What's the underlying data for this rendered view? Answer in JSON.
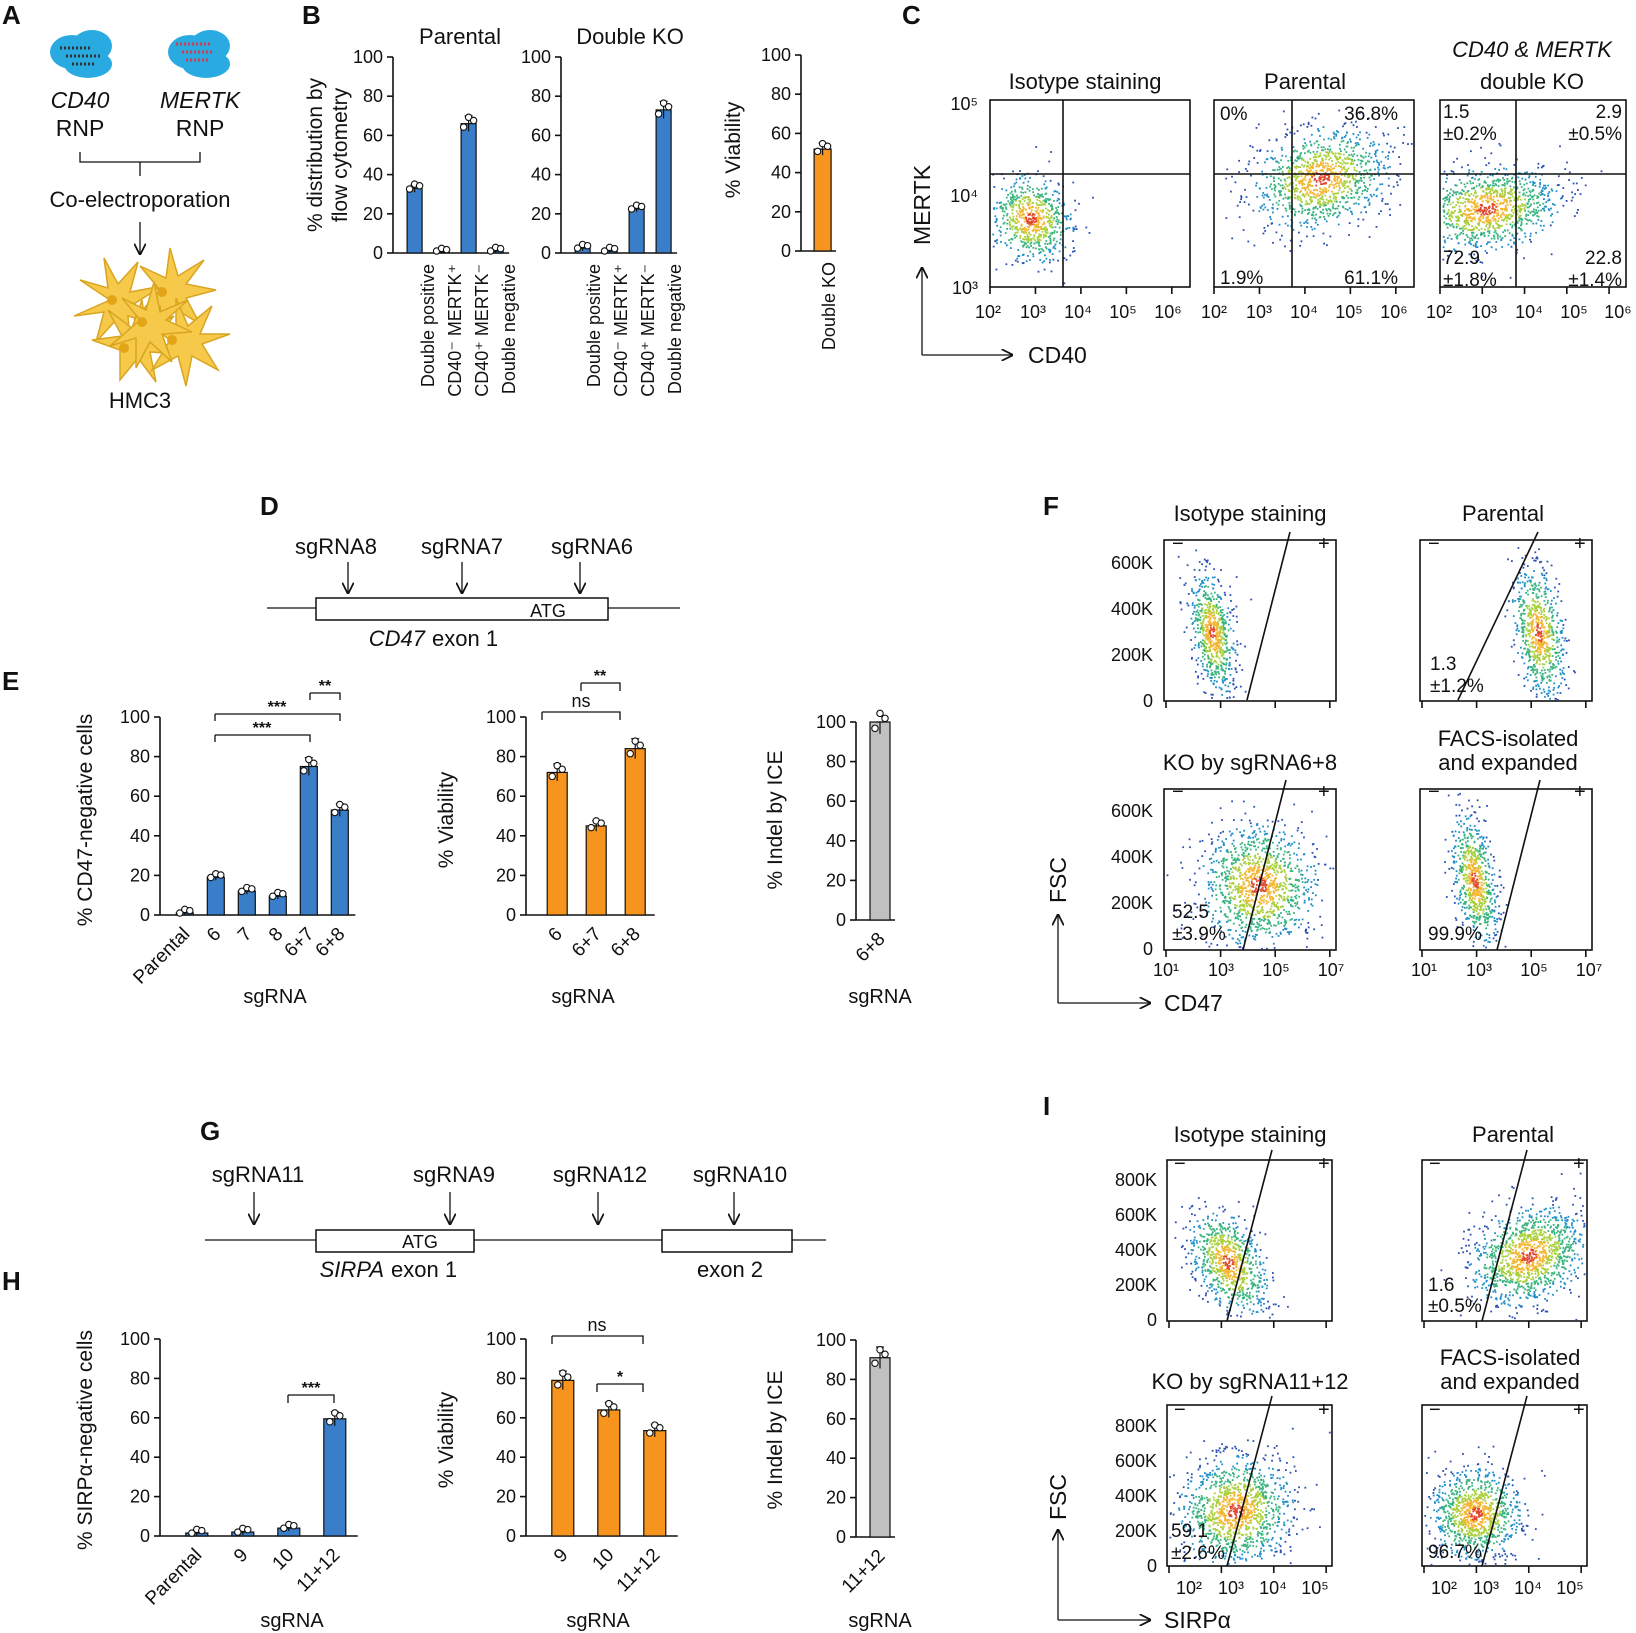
{
  "panel_labels": {
    "A": "A",
    "B": "B",
    "C": "C",
    "D": "D",
    "E": "E",
    "F": "F",
    "G": "G",
    "H": "H",
    "I": "I"
  },
  "panel_a": {
    "rnp1_gene": "CD40",
    "rnp1_suffix": "RNP",
    "rnp2_gene": "MERTK",
    "rnp2_suffix": "RNP",
    "method": "Co-electroporation",
    "cells": "HMC3"
  },
  "panel_b": {
    "ylabel_line1": "% distribution by",
    "ylabel_line2": "flow cytometry",
    "viability_ylabel": "% Viability",
    "category_labels": [
      "Double positive",
      "CD40⁻ MERTK⁺",
      "CD40⁺ MERTK⁻",
      "Double negative"
    ],
    "viability_category": "Double KO"
  },
  "panel_c": {
    "titles": [
      "Isotype staining",
      "Parental",
      "CD40 & MERTK",
      "double KO"
    ],
    "ylabel": "MERTK",
    "xlabel": "CD40",
    "ytick_labels": [
      "10⁵",
      "10⁴",
      "10³"
    ],
    "xtick_labels": [
      "10²",
      "10³",
      "10⁴",
      "10⁵",
      "10⁶"
    ],
    "parental_quadrants": [
      "0%",
      "36.8%",
      "1.9%",
      "61.1%"
    ],
    "dko_quadrants": [
      "1.5",
      "±0.2%",
      "2.9",
      "±0.5%",
      "72.9",
      "±1.8%",
      "22.8",
      "±1.4%"
    ]
  },
  "panel_d": {
    "guides": [
      "sgRNA8",
      "sgRNA7",
      "sgRNA6"
    ],
    "atg": "ATG",
    "gene": "CD47",
    "exon": "exon 1"
  },
  "panel_e": {
    "ylabel1": "% CD47-negative cells",
    "ylabel2": "% Viability",
    "ylabel3": "% Indel by ICE",
    "xlabel": "sgRNA",
    "sig": [
      "***",
      "***",
      "**",
      "ns",
      "**"
    ]
  },
  "panel_f": {
    "titles": [
      "Isotype staining",
      "Parental",
      "KO by sgRNA6+8",
      "FACS-isolated",
      "and expanded"
    ],
    "ytick_labels": [
      "600K",
      "400K",
      "200K",
      "0"
    ],
    "xtick_labels": [
      "10¹",
      "10³",
      "10⁵",
      "10⁷"
    ],
    "ylabel": "FSC",
    "xlabel": "CD47",
    "minus": "−",
    "plus": "+",
    "values": [
      "1.3",
      "±1.2%",
      "52.5",
      "±3.9%",
      "99.9%"
    ]
  },
  "panel_g": {
    "guides": [
      "sgRNA11",
      "sgRNA9",
      "sgRNA12",
      "sgRNA10"
    ],
    "atg": "ATG",
    "gene": "SIRPA",
    "exon1": "exon 1",
    "exon2": "exon 2"
  },
  "panel_h": {
    "ylabel1": "% SIRPα-negative cells",
    "ylabel2": "% Viability",
    "ylabel3": "% Indel by ICE",
    "xlabel": "sgRNA",
    "sig": [
      "***",
      "ns",
      "*"
    ]
  },
  "panel_i": {
    "titles": [
      "Isotype staining",
      "Parental",
      "KO by sgRNA11+12",
      "FACS-isolated",
      "and expanded"
    ],
    "ytick_labels": [
      "800K",
      "600K",
      "400K",
      "200K",
      "0"
    ],
    "xtick_labels": [
      "10²",
      "10³",
      "10⁴",
      "10⁵"
    ],
    "ylabel": "FSC",
    "xlabel": "SIRPα",
    "minus": "−",
    "plus": "+",
    "values": [
      "1.6",
      "±0.5%",
      "59.1",
      "±2.6%",
      "96.7%"
    ]
  },
  "colors": {
    "blue": "#3a7dc9",
    "orange": "#f7941d",
    "gray": "#c0c0c0"
  },
  "chart_data": [
    {
      "id": "B_parental",
      "type": "bar",
      "title": "Parental",
      "categories": [
        "Double positive",
        "CD40⁻ MERTK⁺",
        "CD40⁺ MERTK⁻",
        "Double negative"
      ],
      "values": [
        33,
        0.5,
        66,
        1
      ],
      "ylim": [
        0,
        100
      ],
      "yticks": [
        0,
        20,
        40,
        60,
        80,
        100
      ],
      "ylabel": "% distribution by flow cytometry",
      "color": "blue"
    },
    {
      "id": "B_dko",
      "type": "bar",
      "title": "Double KO",
      "categories": [
        "Double positive",
        "CD40⁻ MERTK⁺",
        "CD40⁺ MERTK⁻",
        "Double negative"
      ],
      "values": [
        2.5,
        1,
        22.5,
        73
      ],
      "ylim": [
        0,
        100
      ],
      "yticks": [
        0,
        20,
        40,
        60,
        80,
        100
      ],
      "color": "blue"
    },
    {
      "id": "B_viab",
      "type": "bar",
      "categories": [
        "Double KO"
      ],
      "values": [
        52
      ],
      "ylim": [
        0,
        100
      ],
      "yticks": [
        0,
        20,
        40,
        60,
        80,
        100
      ],
      "ylabel": "% Viability",
      "color": "orange"
    },
    {
      "id": "E1",
      "type": "bar",
      "categories": [
        "Parental",
        "6",
        "7",
        "8",
        "6+7",
        "6+8"
      ],
      "values": [
        1,
        19,
        12,
        9.5,
        75,
        53
      ],
      "ylim": [
        0,
        100
      ],
      "yticks": [
        0,
        20,
        40,
        60,
        80,
        100
      ],
      "ylabel": "% CD47-negative cells",
      "xlabel": "sgRNA",
      "color": "blue"
    },
    {
      "id": "E2",
      "type": "bar",
      "categories": [
        "6",
        "6+7",
        "6+8"
      ],
      "values": [
        72,
        45,
        84
      ],
      "ylim": [
        0,
        100
      ],
      "yticks": [
        0,
        20,
        40,
        60,
        80,
        100
      ],
      "ylabel": "% Viability",
      "xlabel": "sgRNA",
      "color": "orange"
    },
    {
      "id": "E3",
      "type": "bar",
      "categories": [
        "6+8"
      ],
      "values": [
        100
      ],
      "ylim": [
        0,
        100
      ],
      "yticks": [
        0,
        20,
        40,
        60,
        80,
        100
      ],
      "ylabel": "% Indel by ICE",
      "xlabel": "sgRNA",
      "color": "gray"
    },
    {
      "id": "H1",
      "type": "bar",
      "categories": [
        "Parental",
        "9",
        "10",
        "11+12"
      ],
      "values": [
        1.5,
        2,
        4,
        59.5
      ],
      "ylim": [
        0,
        100
      ],
      "yticks": [
        0,
        20,
        40,
        60,
        80,
        100
      ],
      "ylabel": "% SIRPα-negative cells",
      "xlabel": "sgRNA",
      "color": "blue"
    },
    {
      "id": "H2",
      "type": "bar",
      "categories": [
        "9",
        "10",
        "11+12"
      ],
      "values": [
        79,
        64,
        53.5
      ],
      "ylim": [
        0,
        100
      ],
      "yticks": [
        0,
        20,
        40,
        60,
        80,
        100
      ],
      "ylabel": "% Viability",
      "xlabel": "sgRNA",
      "color": "orange"
    },
    {
      "id": "H3",
      "type": "bar",
      "categories": [
        "11+12"
      ],
      "values": [
        91
      ],
      "ylim": [
        0,
        100
      ],
      "yticks": [
        0,
        20,
        40,
        60,
        80,
        100
      ],
      "ylabel": "% Indel by ICE",
      "xlabel": "sgRNA",
      "color": "gray"
    }
  ]
}
